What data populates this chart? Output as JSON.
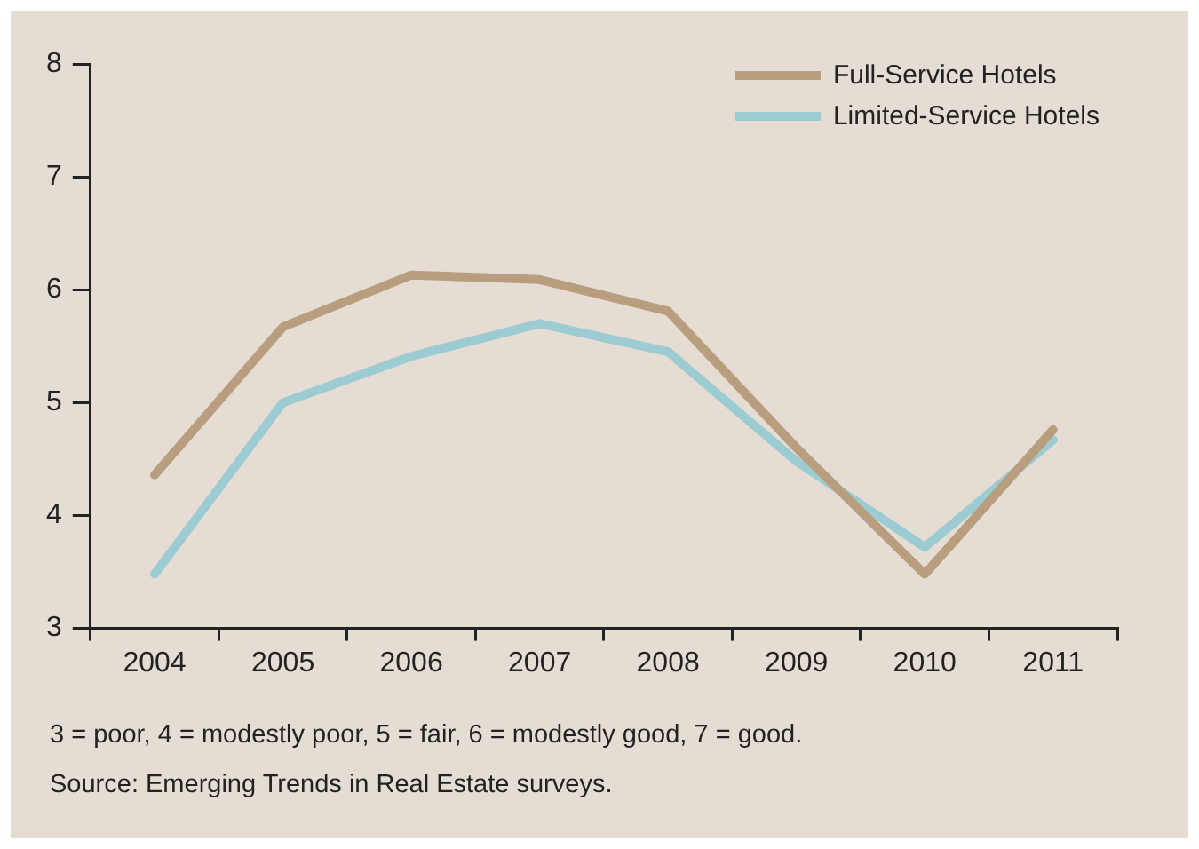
{
  "chart_data": {
    "type": "line",
    "categories": [
      "2004",
      "2005",
      "2006",
      "2007",
      "2008",
      "2009",
      "2010",
      "2011"
    ],
    "series": [
      {
        "name": "Full-Service Hotels",
        "color": "#b89e7e",
        "values": [
          4.36,
          5.67,
          6.13,
          6.09,
          5.81,
          4.6,
          3.48,
          4.76
        ]
      },
      {
        "name": "Limited-Service Hotels",
        "color": "#9ccbd2",
        "values": [
          3.48,
          5.0,
          5.41,
          5.7,
          5.45,
          4.48,
          3.72,
          4.67
        ]
      }
    ],
    "ylim": [
      3,
      8
    ],
    "yticks": [
      3,
      4,
      5,
      6,
      7,
      8
    ],
    "grid": false,
    "legend": "top right",
    "marker": "none",
    "line_style": "solid",
    "annotations": [
      "3 = poor, 4 = modestly poor, 5 = fair, 6 = modestly good, 7 = good.",
      "Source: Emerging Trends in Real Estate surveys."
    ]
  }
}
